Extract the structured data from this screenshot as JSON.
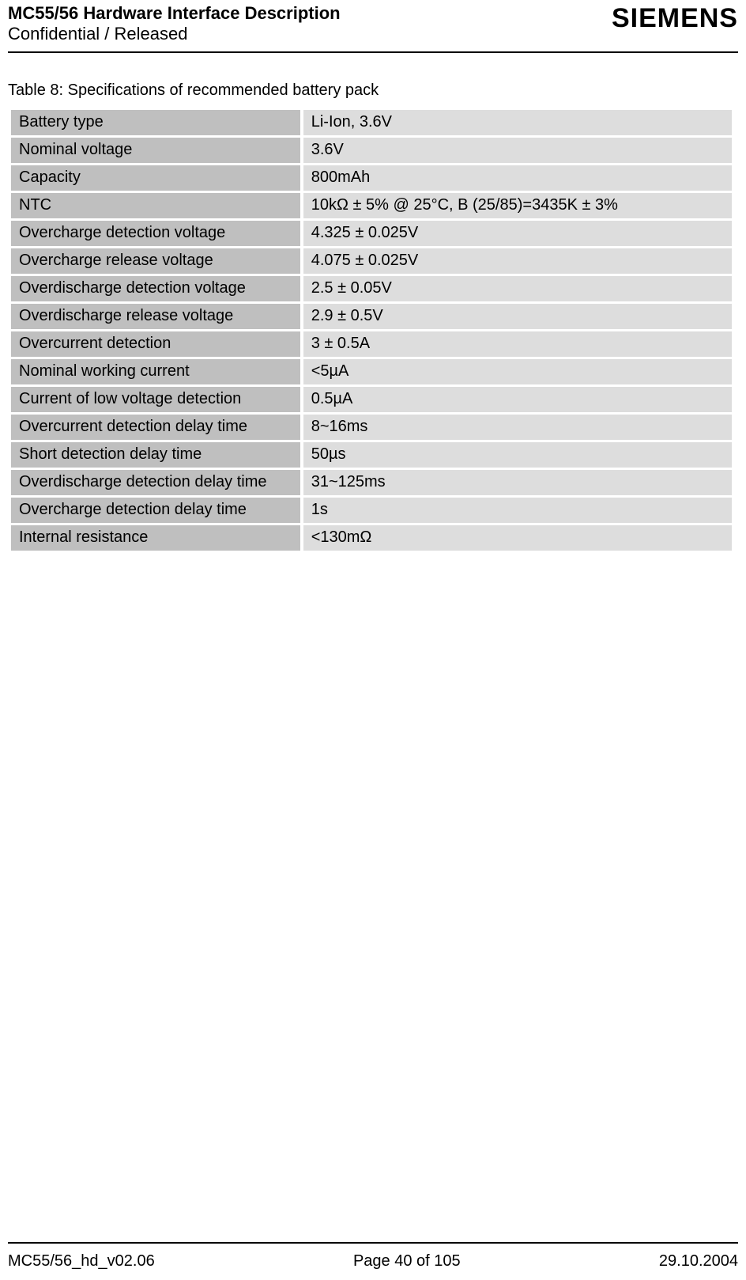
{
  "header": {
    "title": "MC55/56 Hardware Interface Description",
    "status": "Confidential / Released",
    "logo": "SIEMENS"
  },
  "table": {
    "caption": "Table 8: Specifications of recommended battery pack",
    "label_bg": "#bfbfbf",
    "value_bg": "#dddddd",
    "rows": [
      {
        "label": "Battery type",
        "value": "Li-Ion, 3.6V"
      },
      {
        "label": "Nominal voltage",
        "value": "3.6V"
      },
      {
        "label": "Capacity",
        "value": "800mAh"
      },
      {
        "label": "NTC",
        "value": "10kΩ ± 5% @ 25°C, B (25/85)=3435K ± 3%"
      },
      {
        "label": "Overcharge detection voltage",
        "value": "4.325 ± 0.025V"
      },
      {
        "label": "Overcharge release voltage",
        "value": "4.075 ± 0.025V"
      },
      {
        "label": "Overdischarge detection voltage",
        "value": "2.5 ± 0.05V"
      },
      {
        "label": "Overdischarge release voltage",
        "value": "2.9 ± 0.5V"
      },
      {
        "label": "Overcurrent detection",
        "value": "3 ± 0.5A"
      },
      {
        "label": "Nominal working current",
        "value": "<5µA"
      },
      {
        "label": "Current of low voltage detection",
        "value": "0.5µA"
      },
      {
        "label": "Overcurrent detection delay time",
        "value": "8~16ms"
      },
      {
        "label": "Short detection delay time",
        "value": "50µs"
      },
      {
        "label": "Overdischarge detection delay time",
        "value": "31~125ms"
      },
      {
        "label": "Overcharge detection delay time",
        "value": "1s"
      },
      {
        "label": "Internal resistance",
        "value": "<130mΩ"
      }
    ]
  },
  "footer": {
    "left": "MC55/56_hd_v02.06",
    "center": "Page 40 of 105",
    "right": "29.10.2004"
  }
}
